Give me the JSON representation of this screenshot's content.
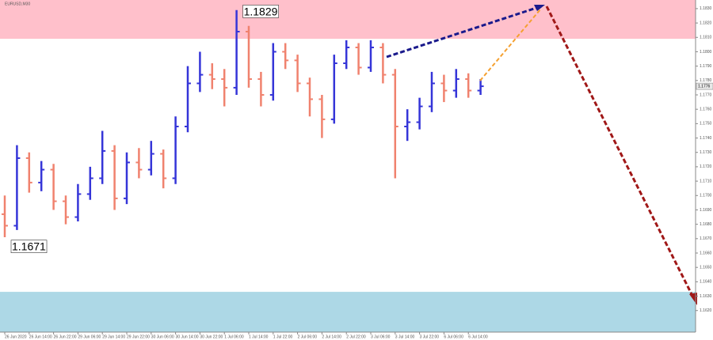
{
  "chart_data": {
    "type": "ohlc",
    "title": "EURUSD,M30",
    "categories": [
      "26 Jun 2020",
      null,
      "26 Jun 14:00",
      null,
      "26 Jun 22:00",
      null,
      "29 Jun 06:00",
      null,
      "29 Jun 14:00",
      null,
      "29 Jun 22:00",
      null,
      "30 Jun 06:00",
      null,
      "30 Jun 14:00",
      null,
      "30 Jun 22:00",
      null,
      "1 Jul 06:00",
      null,
      "1 Jul 14:00",
      null,
      "1 Jul 22:00",
      null,
      "2 Jul 06:00",
      null,
      "2 Jul 14:00",
      null,
      "2 Jul 22:00",
      null,
      "3 Jul 06:00",
      null,
      "3 Jul 14:00",
      null,
      "3 Jul 22:00",
      null,
      "6 Jul 06:00",
      null,
      "6 Jul 14:00",
      null
    ],
    "open": [
      1.1687,
      1.1679,
      1.1726,
      1.1709,
      1.1718,
      1.1696,
      1.1685,
      1.1701,
      1.1712,
      1.1731,
      1.1698,
      1.1723,
      1.1718,
      1.1729,
      1.1712,
      1.1748,
      1.1778,
      1.1784,
      1.1781,
      1.1775,
      1.1814,
      1.1781,
      1.177,
      1.18,
      1.1794,
      1.1778,
      1.1767,
      1.1753,
      1.1792,
      1.1803,
      1.1789,
      1.1803,
      1.1784,
      1.1748,
      1.1751,
      1.1762,
      1.1778,
      1.1773,
      1.1781,
      1.1773
    ],
    "high": [
      1.17,
      1.1735,
      1.173,
      1.1724,
      1.1722,
      1.17,
      1.1708,
      1.172,
      1.1745,
      1.1735,
      1.173,
      1.1733,
      1.1738,
      1.1732,
      1.1755,
      1.179,
      1.18,
      1.1792,
      1.1788,
      1.1829,
      1.1818,
      1.1786,
      1.1806,
      1.1806,
      1.1798,
      1.1782,
      1.177,
      1.1798,
      1.1808,
      1.1806,
      1.1808,
      1.1806,
      1.1788,
      1.176,
      1.1768,
      1.1786,
      1.1784,
      1.1788,
      1.1785,
      1.1781
    ],
    "low": [
      1.1671,
      1.1676,
      1.1702,
      1.1703,
      1.169,
      1.168,
      1.1682,
      1.1697,
      1.1708,
      1.169,
      1.1694,
      1.1712,
      1.1714,
      1.1705,
      1.1708,
      1.1744,
      1.1772,
      1.1774,
      1.1762,
      1.177,
      1.1775,
      1.1762,
      1.1766,
      1.1788,
      1.1772,
      1.1755,
      1.174,
      1.175,
      1.1788,
      1.1784,
      1.1786,
      1.1778,
      1.1712,
      1.1738,
      1.1746,
      1.1758,
      1.1765,
      1.1768,
      1.1768,
      1.177
    ],
    "close": [
      1.1679,
      1.1726,
      1.1709,
      1.1718,
      1.1696,
      1.1685,
      1.1701,
      1.1712,
      1.1731,
      1.1698,
      1.1723,
      1.1718,
      1.1729,
      1.1712,
      1.1748,
      1.1778,
      1.1784,
      1.1781,
      1.1775,
      1.1814,
      1.1781,
      1.177,
      1.18,
      1.1794,
      1.1778,
      1.1767,
      1.1753,
      1.1792,
      1.1803,
      1.1789,
      1.1803,
      1.1784,
      1.1748,
      1.1751,
      1.1762,
      1.1778,
      1.1773,
      1.1781,
      1.1773,
      1.1776
    ],
    "up_color": "#3535d8",
    "down_color": "#f0826e",
    "annotations": [
      {
        "value": 1.1829,
        "label": "1.1829"
      },
      {
        "value": 1.1671,
        "label": "1.1671"
      }
    ],
    "zones": [
      {
        "from": 1.1809,
        "to": 1.1836,
        "color": "#ffc0cb"
      },
      {
        "from": 1.1605,
        "to": 1.1633,
        "color": "#add8e6"
      }
    ],
    "ylim": [
      1.1605,
      1.1836
    ],
    "yticks": [
      {
        "value": 1.162,
        "label": "1.1620"
      },
      {
        "value": 1.163,
        "label": "1.1630"
      },
      {
        "value": 1.164,
        "label": "1.1640"
      },
      {
        "value": 1.165,
        "label": "1.1650"
      },
      {
        "value": 1.166,
        "label": "1.1660"
      },
      {
        "value": 1.167,
        "label": "1.1670"
      },
      {
        "value": 1.168,
        "label": "1.1680"
      },
      {
        "value": 1.169,
        "label": "1.1690"
      },
      {
        "value": 1.17,
        "label": "1.1700"
      },
      {
        "value": 1.171,
        "label": "1.1710"
      },
      {
        "value": 1.172,
        "label": "1.1720"
      },
      {
        "value": 1.173,
        "label": "1.1730"
      },
      {
        "value": 1.174,
        "label": "1.1740"
      },
      {
        "value": 1.175,
        "label": "1.1750"
      },
      {
        "value": 1.176,
        "label": "1.1760"
      },
      {
        "value": 1.177,
        "label": "1.1770"
      },
      {
        "value": 1.178,
        "label": "1.1780"
      },
      {
        "value": 1.179,
        "label": "1.1790"
      },
      {
        "value": 1.18,
        "label": "1.1800"
      },
      {
        "value": 1.181,
        "label": "1.1810"
      },
      {
        "value": 1.182,
        "label": "1.1820"
      },
      {
        "value": 1.183,
        "label": "1.1830"
      }
    ]
  }
}
